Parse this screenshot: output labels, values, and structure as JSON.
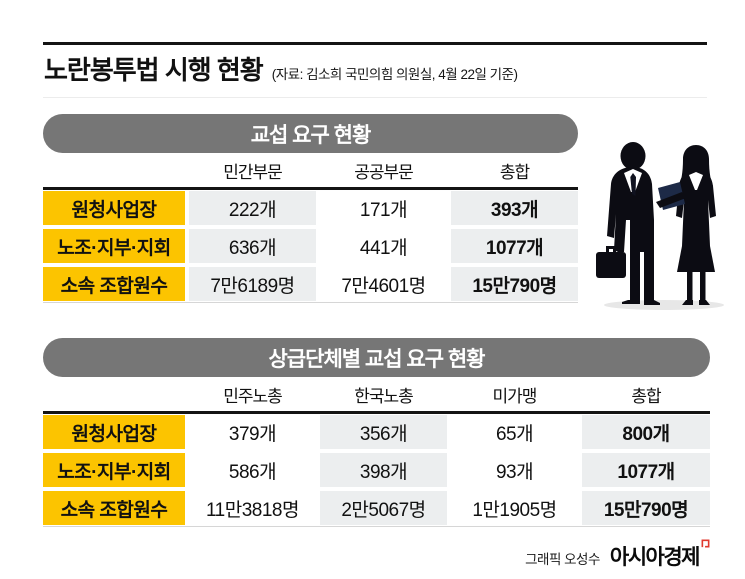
{
  "page": {
    "title": "노란봉투법 시행 현황",
    "subtitle": "(자료: 김소희 국민의힘 의원실, 4월 22일 기준)",
    "credit_label": "그래픽 오성수",
    "brand": "아시아경제"
  },
  "colors": {
    "accent_yellow": "#fcc400",
    "section_bar_gray": "#767676",
    "shaded_cell_gray": "#eceeef",
    "rule_black": "#141414",
    "brand_mark_red": "#e03a2f"
  },
  "tables": [
    {
      "section_title": "교섭 요구 현황",
      "columns": [
        "민간부문",
        "공공부문",
        "총합"
      ],
      "shaded_columns": [
        0,
        2
      ],
      "rows": [
        {
          "label": "원청사업장",
          "values": [
            "222개",
            "171개",
            "393개"
          ]
        },
        {
          "label": "노조·지부·지회",
          "values": [
            "636개",
            "441개",
            "1077개"
          ]
        },
        {
          "label": "소속 조합원수",
          "values": [
            "7만6189명",
            "7만4601명",
            "15만790명"
          ]
        }
      ]
    },
    {
      "section_title": "상급단체별 교섭 요구 현황",
      "columns": [
        "민주노총",
        "한국노총",
        "미가맹",
        "총합"
      ],
      "shaded_columns": [
        1,
        3
      ],
      "rows": [
        {
          "label": "원청사업장",
          "values": [
            "379개",
            "356개",
            "65개",
            "800개"
          ]
        },
        {
          "label": "노조·지부·지회",
          "values": [
            "586개",
            "398개",
            "93개",
            "1077개"
          ]
        },
        {
          "label": "소속 조합원수",
          "values": [
            "11만3818명",
            "2만5067명",
            "1만1905명",
            "15만790명"
          ]
        }
      ]
    }
  ],
  "chart_data": [
    {
      "type": "table",
      "title": "교섭 요구 현황",
      "columns": [
        "민간부문",
        "공공부문",
        "총합"
      ],
      "row_labels": [
        "원청사업장",
        "노조·지부·지회",
        "소속 조합원수"
      ],
      "values": [
        [
          222,
          171,
          393
        ],
        [
          636,
          441,
          1077
        ],
        [
          76189,
          74601,
          150790
        ]
      ],
      "units": [
        "개",
        "개",
        "명"
      ]
    },
    {
      "type": "table",
      "title": "상급단체별 교섭 요구 현황",
      "columns": [
        "민주노총",
        "한국노총",
        "미가맹",
        "총합"
      ],
      "row_labels": [
        "원청사업장",
        "노조·지부·지회",
        "소속 조합원수"
      ],
      "values": [
        [
          379,
          356,
          65,
          800
        ],
        [
          586,
          398,
          93,
          1077
        ],
        [
          113818,
          25067,
          11905,
          150790
        ]
      ],
      "units": [
        "개",
        "개",
        "명"
      ]
    }
  ]
}
